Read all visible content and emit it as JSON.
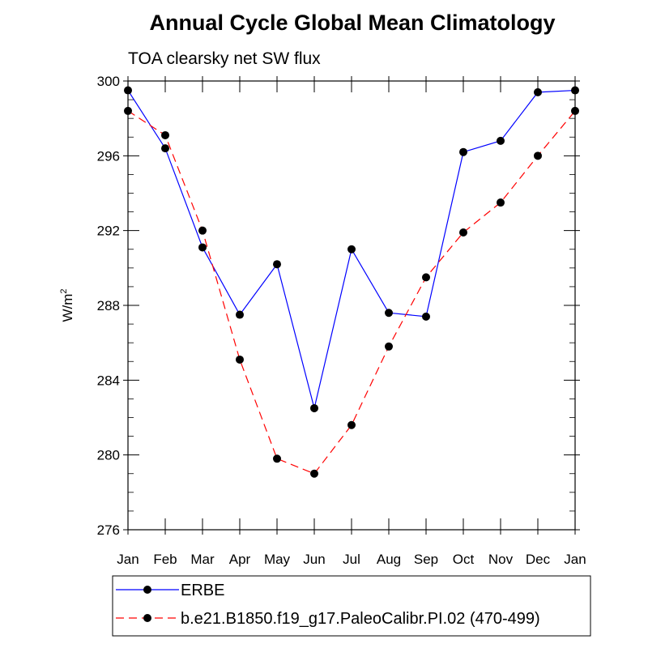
{
  "chart_data": {
    "type": "line",
    "title": "Annual Cycle Global Mean Climatology",
    "subtitle": "TOA clearsky net SW flux",
    "ylabel": "W/m",
    "ylabel_sup": "2",
    "xlabel": "",
    "categories": [
      "Jan",
      "Feb",
      "Mar",
      "Apr",
      "May",
      "Jun",
      "Jul",
      "Aug",
      "Sep",
      "Oct",
      "Nov",
      "Dec",
      "Jan"
    ],
    "ylim": [
      276,
      300
    ],
    "yticks": [
      276,
      280,
      284,
      288,
      292,
      296,
      300
    ],
    "series": [
      {
        "name": "ERBE",
        "color": "#0000ff",
        "dash": "solid",
        "values": [
          299.5,
          296.4,
          291.1,
          287.5,
          290.2,
          282.5,
          291.0,
          287.6,
          287.4,
          296.2,
          296.8,
          299.4,
          299.5
        ]
      },
      {
        "name": "b.e21.B1850.f19_g17.PaleoCalibr.PI.02 (470-499)",
        "color": "#ff0000",
        "dash": "dashed",
        "values": [
          298.4,
          297.1,
          292.0,
          285.1,
          279.8,
          279.0,
          281.6,
          285.8,
          289.5,
          291.9,
          293.5,
          296.0,
          298.4
        ]
      }
    ],
    "grid": false,
    "legend_position": "bottom"
  }
}
